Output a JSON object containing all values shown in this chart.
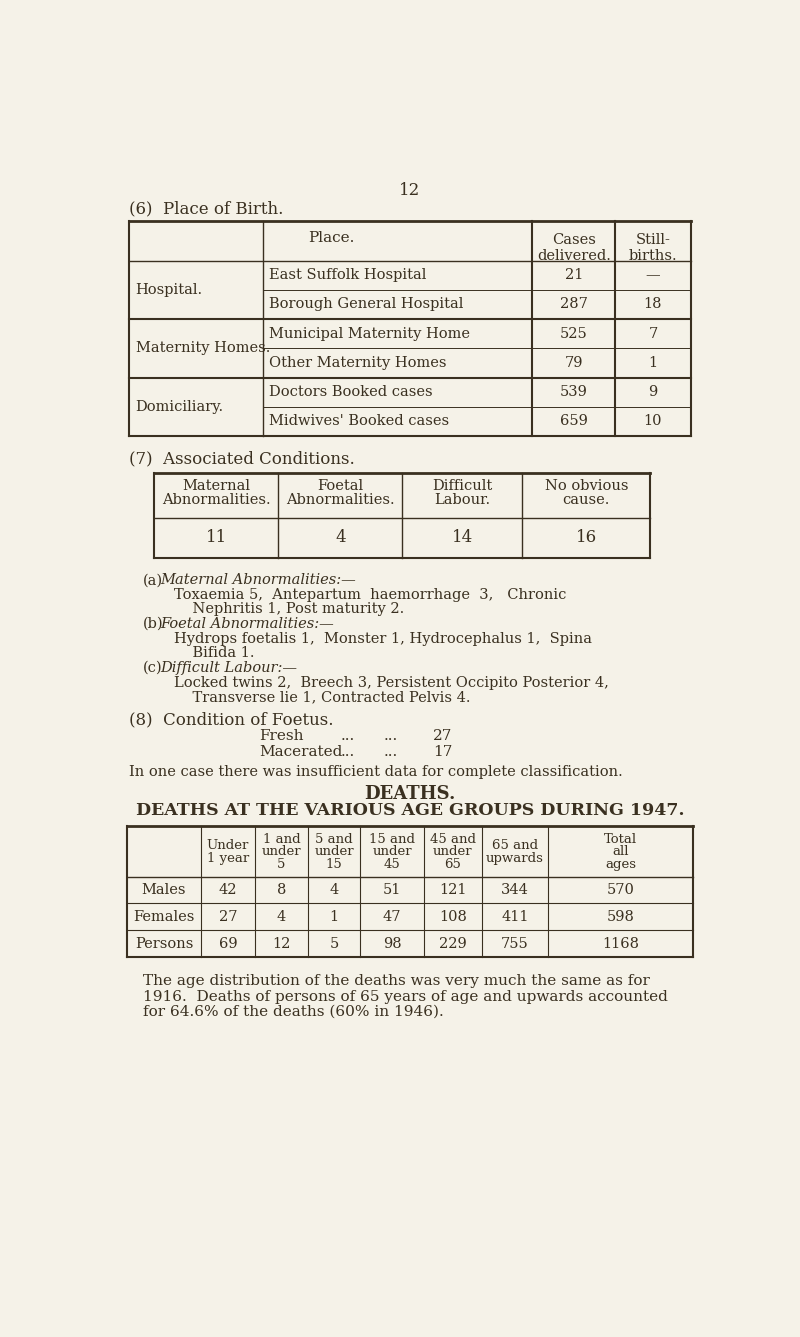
{
  "bg_color": "#f5f2e8",
  "text_color": "#3a3020",
  "page_number": "12",
  "section6_title": "(6)  Place of Birth.",
  "table1": {
    "col_headers": [
      "Place.",
      "Cases\ndelivered.",
      "Still-\nbirths."
    ],
    "rows": [
      [
        "Hospital.",
        "East Suffolk Hospital",
        "21",
        "—"
      ],
      [
        "Hospital.",
        "Borough General Hospital",
        "287",
        "18"
      ],
      [
        "Maternity Homes.",
        "Municipal Maternity Home",
        "525",
        "7"
      ],
      [
        "Maternity Homes.",
        "Other Maternity Homes",
        "79",
        "1"
      ],
      [
        "Domiciliary.",
        "Doctors Booked cases",
        "539",
        "9"
      ],
      [
        "Domiciliary.",
        "Midwives' Booked cases",
        "659",
        "10"
      ]
    ]
  },
  "section7_title": "(7)  Associated Conditions.",
  "table2": {
    "col_headers": [
      "Maternal\nAbnormalities.",
      "Foetal\nAbnormalities.",
      "Difficult\nLabour.",
      "No obvious\ncause."
    ],
    "values": [
      "11",
      "4",
      "14",
      "16"
    ]
  },
  "section8_title": "(8)  Condition of Foetus.",
  "foetus_data": [
    [
      "Fresh",
      "...",
      "...",
      "27"
    ],
    [
      "Macerated",
      "...",
      "...",
      "17"
    ]
  ],
  "foetus_note": "In one case there was insufficient data for complete classification.",
  "deaths_title1": "DEATHS.",
  "deaths_title2": "DEATHS AT THE VARIOUS AGE GROUPS DURING 1947.",
  "table3": {
    "col_headers": [
      "",
      "Under\n1 year",
      "1 and\nunder\n5",
      "5 and\nunder\n15",
      "15 and\nunder\n45",
      "45 and\nunder\n65",
      "65 and\nupwards",
      "Total\nall\nages"
    ],
    "rows": [
      [
        "Males",
        "42",
        "8",
        "4",
        "51",
        "121",
        "344",
        "570"
      ],
      [
        "Females",
        "27",
        "4",
        "1",
        "47",
        "108",
        "411",
        "598"
      ],
      [
        "Persons",
        "69",
        "12",
        "5",
        "98",
        "229",
        "755",
        "1168"
      ]
    ]
  },
  "final_text": [
    "The age distribution of the deaths was very much the same as for",
    "1916.  Deaths of persons of 65 years of age and upwards accounted",
    "for 64.6% of the deaths (60% in 1946)."
  ]
}
